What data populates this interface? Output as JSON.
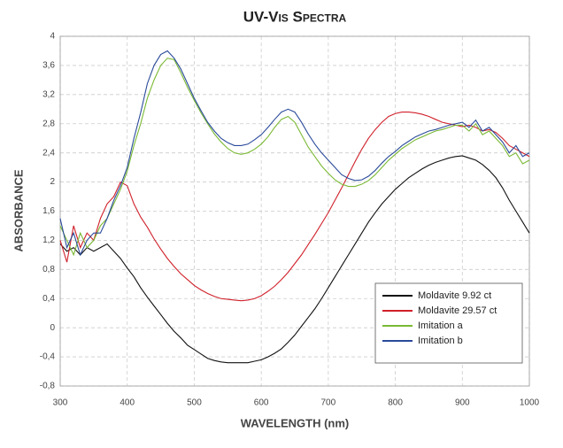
{
  "chart_data": {
    "type": "line",
    "title": "UV-Vis Spectra",
    "xlabel": "WAVELENGTH (nm)",
    "ylabel": "ABSORBANCE",
    "x": [
      300,
      310,
      320,
      330,
      340,
      350,
      360,
      370,
      380,
      390,
      400,
      410,
      420,
      430,
      440,
      450,
      460,
      470,
      480,
      490,
      500,
      510,
      520,
      530,
      540,
      550,
      560,
      570,
      580,
      590,
      600,
      610,
      620,
      630,
      640,
      650,
      660,
      670,
      680,
      690,
      700,
      710,
      720,
      730,
      740,
      750,
      760,
      770,
      780,
      790,
      800,
      810,
      820,
      830,
      840,
      850,
      860,
      870,
      880,
      890,
      900,
      910,
      920,
      930,
      940,
      950,
      960,
      970,
      980,
      990,
      1000
    ],
    "series": [
      {
        "name": "Moldavite 9.92 ct",
        "color": "#111111",
        "values": [
          1.15,
          1.05,
          1.1,
          1.0,
          1.1,
          1.05,
          1.1,
          1.15,
          1.05,
          0.95,
          0.82,
          0.7,
          0.55,
          0.42,
          0.3,
          0.18,
          0.06,
          -0.05,
          -0.14,
          -0.24,
          -0.3,
          -0.36,
          -0.42,
          -0.45,
          -0.47,
          -0.48,
          -0.48,
          -0.48,
          -0.48,
          -0.46,
          -0.44,
          -0.4,
          -0.35,
          -0.29,
          -0.2,
          -0.1,
          0.02,
          0.14,
          0.26,
          0.4,
          0.55,
          0.7,
          0.85,
          1.0,
          1.15,
          1.3,
          1.45,
          1.58,
          1.7,
          1.8,
          1.9,
          1.98,
          2.06,
          2.12,
          2.18,
          2.23,
          2.27,
          2.3,
          2.33,
          2.35,
          2.36,
          2.33,
          2.3,
          2.24,
          2.16,
          2.06,
          1.92,
          1.75,
          1.6,
          1.45,
          1.3
        ]
      },
      {
        "name": "Moldavite 29.57 ct",
        "color": "#d0202a",
        "values": [
          1.2,
          0.9,
          1.4,
          1.1,
          1.3,
          1.2,
          1.5,
          1.7,
          1.8,
          2.0,
          1.95,
          1.7,
          1.52,
          1.38,
          1.22,
          1.08,
          0.95,
          0.84,
          0.74,
          0.66,
          0.58,
          0.52,
          0.47,
          0.43,
          0.4,
          0.39,
          0.38,
          0.37,
          0.38,
          0.4,
          0.44,
          0.5,
          0.57,
          0.66,
          0.76,
          0.88,
          1.0,
          1.14,
          1.28,
          1.43,
          1.58,
          1.75,
          1.92,
          2.1,
          2.28,
          2.45,
          2.6,
          2.72,
          2.82,
          2.9,
          2.94,
          2.96,
          2.96,
          2.95,
          2.93,
          2.9,
          2.86,
          2.82,
          2.8,
          2.78,
          2.76,
          2.78,
          2.75,
          2.7,
          2.72,
          2.68,
          2.6,
          2.5,
          2.45,
          2.4,
          2.35
        ]
      },
      {
        "name": "Imitation a",
        "color": "#7ab934",
        "values": [
          1.4,
          1.2,
          1.0,
          1.3,
          1.1,
          1.2,
          1.4,
          1.5,
          1.7,
          1.9,
          2.15,
          2.5,
          2.8,
          3.15,
          3.4,
          3.6,
          3.7,
          3.68,
          3.5,
          3.3,
          3.12,
          2.95,
          2.8,
          2.66,
          2.55,
          2.46,
          2.4,
          2.38,
          2.4,
          2.45,
          2.52,
          2.62,
          2.75,
          2.86,
          2.9,
          2.82,
          2.65,
          2.48,
          2.35,
          2.22,
          2.12,
          2.03,
          1.97,
          1.94,
          1.94,
          1.97,
          2.02,
          2.1,
          2.2,
          2.3,
          2.38,
          2.46,
          2.52,
          2.58,
          2.62,
          2.66,
          2.7,
          2.72,
          2.75,
          2.78,
          2.78,
          2.7,
          2.8,
          2.65,
          2.7,
          2.6,
          2.5,
          2.35,
          2.4,
          2.25,
          2.3
        ]
      },
      {
        "name": "Imitation b",
        "color": "#2a4a9a",
        "values": [
          1.5,
          1.1,
          1.3,
          1.0,
          1.2,
          1.3,
          1.3,
          1.5,
          1.75,
          1.95,
          2.2,
          2.6,
          2.95,
          3.35,
          3.6,
          3.75,
          3.8,
          3.7,
          3.55,
          3.35,
          3.15,
          2.98,
          2.82,
          2.7,
          2.6,
          2.54,
          2.5,
          2.5,
          2.52,
          2.58,
          2.65,
          2.75,
          2.86,
          2.96,
          3.0,
          2.96,
          2.82,
          2.66,
          2.52,
          2.4,
          2.3,
          2.2,
          2.1,
          2.05,
          2.02,
          2.03,
          2.08,
          2.16,
          2.26,
          2.35,
          2.42,
          2.5,
          2.56,
          2.62,
          2.66,
          2.7,
          2.72,
          2.75,
          2.78,
          2.8,
          2.82,
          2.75,
          2.85,
          2.7,
          2.75,
          2.65,
          2.55,
          2.4,
          2.5,
          2.35,
          2.4
        ]
      }
    ],
    "xlim": [
      300,
      1000
    ],
    "xticks": [
      300,
      400,
      500,
      600,
      700,
      800,
      900,
      1000
    ],
    "ylim": [
      -0.8,
      4
    ],
    "yticks": [
      {
        "value": -0.8,
        "label": "-0,8"
      },
      {
        "value": -0.4,
        "label": "-0,4"
      },
      0,
      {
        "value": 0.4,
        "label": "0,4"
      },
      {
        "value": 0.8,
        "label": "0,8"
      },
      {
        "value": 1.2,
        "label": "1,2"
      },
      {
        "value": 1.6,
        "label": "1,6"
      },
      2,
      {
        "value": 2.4,
        "label": "2,4"
      },
      {
        "value": 2.8,
        "label": "2,8"
      },
      {
        "value": 3.2,
        "label": "3,2"
      },
      {
        "value": 3.6,
        "label": "3,6"
      },
      4
    ],
    "grid": true,
    "legend": "lower-right"
  }
}
